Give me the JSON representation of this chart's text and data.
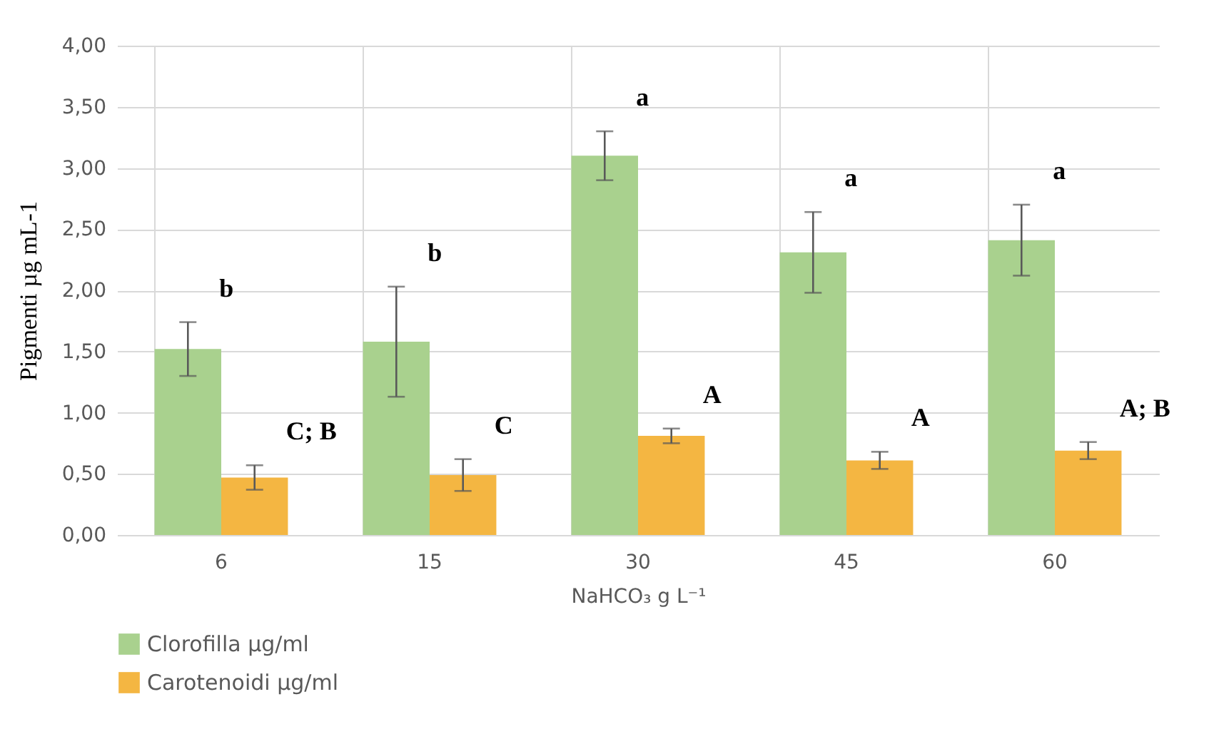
{
  "chart_data": {
    "type": "bar",
    "xlabel": "NaHCO₃ g L⁻¹",
    "ylabel": "Pigmenti µg mL-1",
    "categories": [
      "6",
      "15",
      "30",
      "45",
      "60"
    ],
    "series": [
      {
        "name": "Clorofilla µg/ml",
        "color": "#a9d18e",
        "values": [
          1.52,
          1.58,
          3.1,
          2.31,
          2.41
        ],
        "errors": [
          0.22,
          0.45,
          0.2,
          0.33,
          0.29
        ]
      },
      {
        "name": "Carotenoidi µg/ml",
        "color": "#f4b642",
        "values": [
          0.47,
          0.49,
          0.81,
          0.61,
          0.69
        ],
        "errors": [
          0.1,
          0.13,
          0.06,
          0.07,
          0.07
        ]
      }
    ],
    "ylim": [
      0,
      4
    ],
    "yticks": [
      {
        "value": 0,
        "label": "0,00"
      },
      {
        "value": 0.5,
        "label": "0,50"
      },
      {
        "value": 1,
        "label": "1,00"
      },
      {
        "value": 1.5,
        "label": "1,50"
      },
      {
        "value": 2,
        "label": "2,00"
      },
      {
        "value": 2.5,
        "label": "2,50"
      },
      {
        "value": 3,
        "label": "3,00"
      },
      {
        "value": 3.5,
        "label": "3,50"
      },
      {
        "value": 4,
        "label": "4,00"
      }
    ],
    "grid": true,
    "legend": "bottom",
    "annotations": [
      {
        "text": "b",
        "x": "6",
        "y": 1.52
      },
      {
        "text": "b",
        "x": "15",
        "y": 1.58
      },
      {
        "text": "a",
        "x": "30",
        "y": 3.1
      },
      {
        "text": "a",
        "x": "45",
        "y": 2.31
      },
      {
        "text": "a",
        "x": "60",
        "y": 2.41
      },
      {
        "text": "C; B",
        "x": "6",
        "y": 0.47
      },
      {
        "text": "C",
        "x": "15",
        "y": 0.49
      },
      {
        "text": "A",
        "x": "30",
        "y": 0.81
      },
      {
        "text": "A",
        "x": "45",
        "y": 0.61
      },
      {
        "text": "A; B",
        "x": "60",
        "y": 0.69
      }
    ]
  }
}
